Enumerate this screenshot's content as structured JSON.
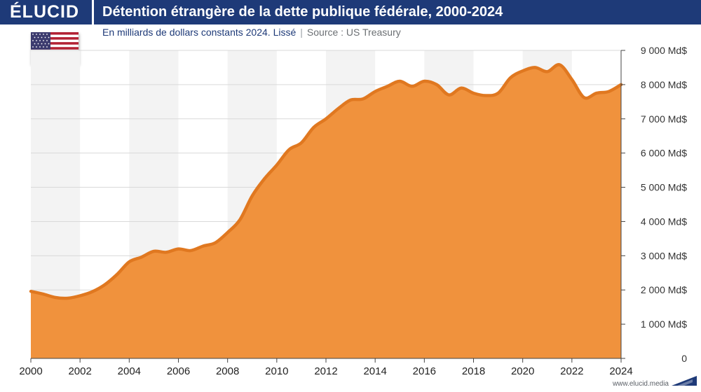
{
  "brand": "ÉLUCID",
  "title": "Détention étrangère de la dette publique fédérale, 2000-2024",
  "subtitle": {
    "main": "En milliards de dollars constants 2024. Lissé",
    "separator": "|",
    "source": "Source : US Treasury"
  },
  "footer": {
    "url": "www.elucid.media"
  },
  "colors": {
    "header": "#1e3a78",
    "area": "#f0923d",
    "line": "#e07820",
    "band": "#f3f3f3",
    "grid": "#d9d9d9"
  },
  "flag": {
    "icon": "us-flag-icon"
  },
  "chart_data": {
    "type": "area",
    "title": "Détention étrangère de la dette publique fédérale, 2000-2024",
    "xlabel": "",
    "ylabel": "",
    "xlim": [
      2000,
      2024
    ],
    "ylim": [
      0,
      9000
    ],
    "x_ticks": [
      2000,
      2002,
      2004,
      2006,
      2008,
      2010,
      2012,
      2014,
      2016,
      2018,
      2020,
      2022,
      2024
    ],
    "y_ticks": [
      0,
      1000,
      2000,
      3000,
      4000,
      5000,
      6000,
      7000,
      8000,
      9000
    ],
    "y_tick_labels": [
      "0",
      "1 000 Md$",
      "2 000 Md$",
      "3 000 Md$",
      "4 000 Md$",
      "5 000 Md$",
      "6 000 Md$",
      "7 000 Md$",
      "8 000 Md$",
      "9 000 Md$"
    ],
    "y_axis_side": "right",
    "grid": "horizontal",
    "background_bands": true,
    "series": [
      {
        "x": [
          2000,
          2000.5,
          2001,
          2001.5,
          2002,
          2002.5,
          2003,
          2003.5,
          2004,
          2004.5,
          2005,
          2005.5,
          2006,
          2006.5,
          2007,
          2007.5,
          2008,
          2008.5,
          2009,
          2009.5,
          2010,
          2010.5,
          2011,
          2011.5,
          2012,
          2012.5,
          2013,
          2013.5,
          2014,
          2014.5,
          2015,
          2015.5,
          2016,
          2016.5,
          2017,
          2017.5,
          2018,
          2018.5,
          2019,
          2019.5,
          2020,
          2020.5,
          2021,
          2021.5,
          2022,
          2022.5,
          2023,
          2023.5,
          2024
        ],
        "values": [
          1960,
          1880,
          1780,
          1760,
          1830,
          1950,
          2150,
          2450,
          2820,
          2960,
          3130,
          3100,
          3200,
          3150,
          3280,
          3380,
          3680,
          4050,
          4750,
          5250,
          5650,
          6100,
          6300,
          6750,
          7000,
          7300,
          7550,
          7580,
          7800,
          7950,
          8100,
          7950,
          8100,
          8000,
          7700,
          7900,
          7750,
          7680,
          7750,
          8200,
          8400,
          8500,
          8380,
          8580,
          8150,
          7620,
          7750,
          7800,
          8000
        ]
      }
    ]
  }
}
